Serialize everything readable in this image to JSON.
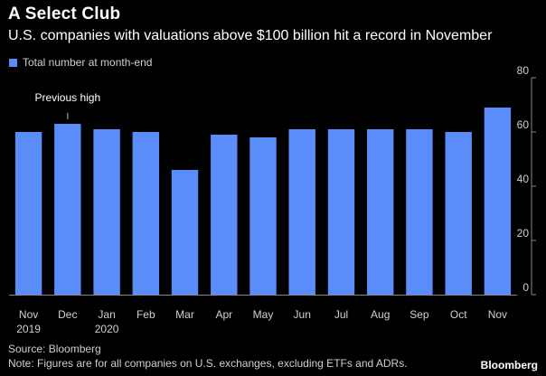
{
  "header": {
    "title": "A Select Club",
    "subtitle": "U.S. companies with valuations above $100 billion hit a record in November"
  },
  "footer": {
    "source": "Source: Bloomberg",
    "note": "Note: Figures are for all companies on U.S. exchanges, excluding ETFs and ADRs.",
    "brand": "Bloomberg"
  },
  "colors": {
    "bar": "#5b8dfa",
    "background": "#000000",
    "tick_text": "#d0d0d0",
    "axis": "#888888"
  },
  "chart_data": {
    "type": "bar",
    "title": "A Select Club",
    "subtitle": "U.S. companies with valuations above $100 billion hit a record in November",
    "categories": [
      "Nov",
      "Dec",
      "Jan",
      "Feb",
      "Mar",
      "Apr",
      "May",
      "Jun",
      "Jul",
      "Aug",
      "Sep",
      "Oct",
      "Nov"
    ],
    "category_sublabels": [
      "2019",
      "",
      "2020",
      "",
      "",
      "",
      "",
      "",
      "",
      "",
      "",
      "",
      ""
    ],
    "series": [
      {
        "name": "Total number at month-end",
        "values": [
          60,
          63,
          61,
          60,
          46,
          59,
          58,
          61,
          61,
          61,
          61,
          60,
          69
        ]
      }
    ],
    "ylim": [
      0,
      80
    ],
    "yticks": [
      0,
      20,
      40,
      60,
      80
    ],
    "y_axis_side": "right",
    "grid": false,
    "legend": "top-left",
    "annotations": [
      {
        "text": "Previous high",
        "category_index": 1
      }
    ]
  }
}
